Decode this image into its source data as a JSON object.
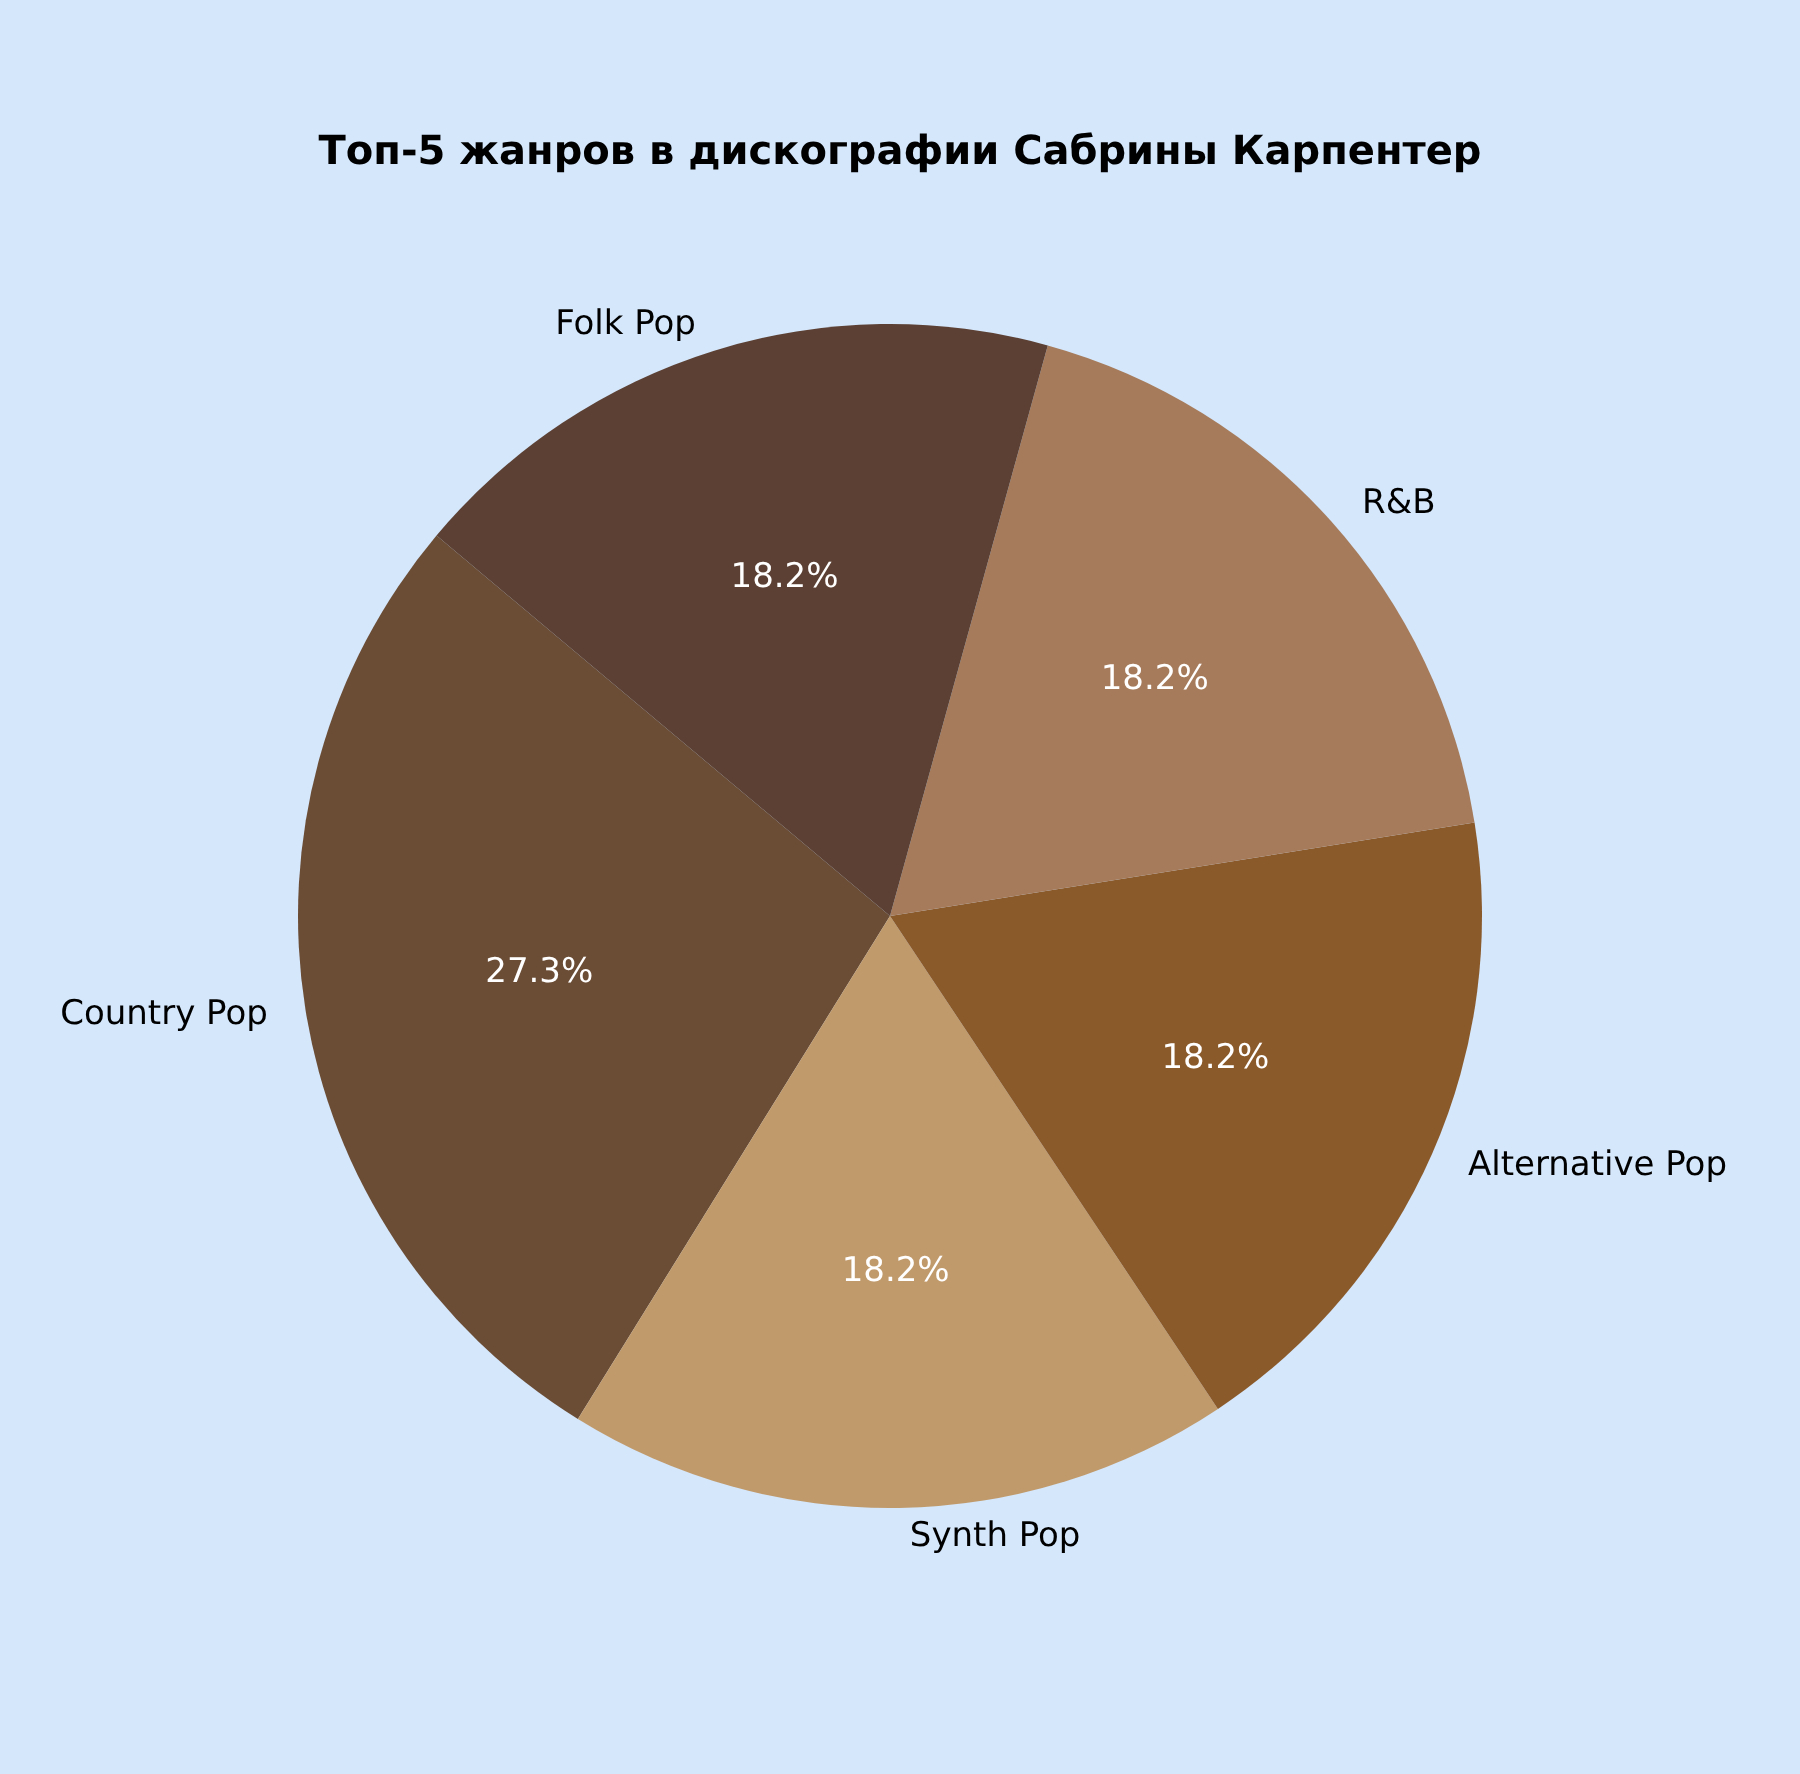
{
  "chart_data": {
    "type": "pie",
    "title": "Топ-5 жанров в дискографии Сабрины Карпентер",
    "categories": [
      "Country Pop",
      "Synth Pop",
      "Alternative Pop",
      "R&B",
      "Folk Pop"
    ],
    "values": [
      27.3,
      18.2,
      18.2,
      18.2,
      18.2
    ],
    "colors": [
      "#6b4c35",
      "#c19a6b",
      "#8b5a2b",
      "#a67b5b",
      "#5c4033"
    ],
    "value_labels": [
      "27.3%",
      "18.2%",
      "18.2%",
      "18.2%",
      "18.2%"
    ],
    "legend": false
  }
}
